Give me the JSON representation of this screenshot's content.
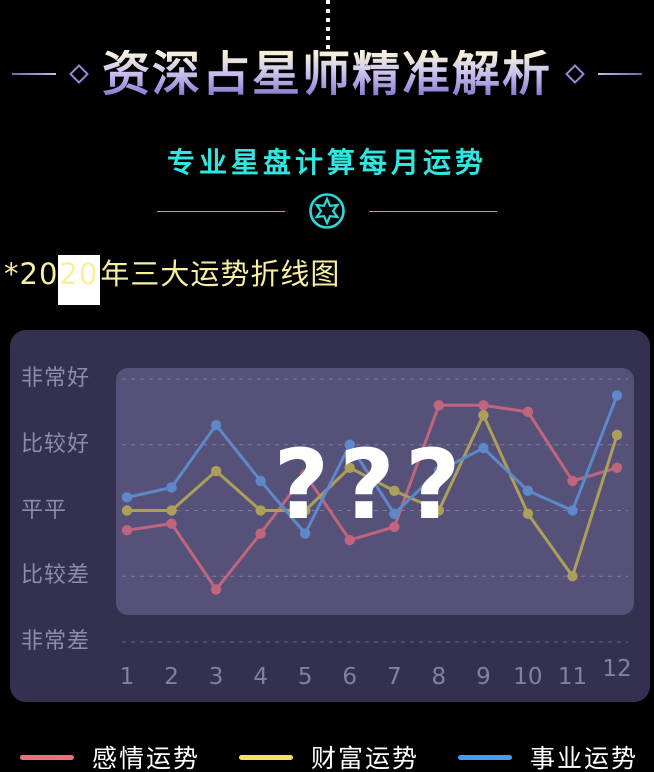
{
  "header": {
    "title": "资深占星师精准解析",
    "subtitle": "专业星盘计算每月运势"
  },
  "section": {
    "heading_prefix": "*20",
    "heading_highlight": "20",
    "heading_suffix": "年三大运势折线图",
    "heading_full": "*2020年三大运势折线图"
  },
  "icons": {
    "divider_star": "hexagram-star-in-circle",
    "star_color": "#2bd9d6"
  },
  "chart_data": {
    "type": "line",
    "title": "2020年三大运势折线图",
    "x_labels": [
      "1",
      "2",
      "3",
      "4",
      "5",
      "6",
      "7",
      "8",
      "9",
      "10",
      "11",
      "12"
    ],
    "xlabel": "",
    "ylabel": "",
    "y_axis_labels": [
      "非常好",
      "比较好",
      "平平",
      "比较差",
      "非常差"
    ],
    "y_axis_values": [
      5,
      4,
      3,
      2,
      1
    ],
    "ylim": [
      0.5,
      5.5
    ],
    "grid": "horizontal-dashed",
    "legend_position": "bottom",
    "overlay_text": "???",
    "series": [
      {
        "name": "感情运势",
        "legend_color": "#ef6f7d",
        "line_color": "#c0657e",
        "values": [
          2.7,
          2.8,
          1.8,
          2.65,
          3.55,
          2.55,
          2.75,
          4.6,
          4.6,
          4.5,
          3.45,
          3.65
        ]
      },
      {
        "name": "财富运势",
        "legend_color": "#f3e164",
        "line_color": "#ac9f5a",
        "values": [
          3.0,
          3.0,
          3.6,
          3.0,
          3.0,
          3.65,
          3.3,
          3.0,
          4.45,
          2.95,
          2.0,
          4.15
        ]
      },
      {
        "name": "事业运势",
        "legend_color": "#419ff3",
        "line_color": "#5d88ca",
        "values": [
          3.2,
          3.35,
          4.3,
          3.45,
          2.65,
          4.0,
          2.95,
          3.6,
          3.95,
          3.3,
          3.0,
          4.75
        ]
      }
    ]
  }
}
